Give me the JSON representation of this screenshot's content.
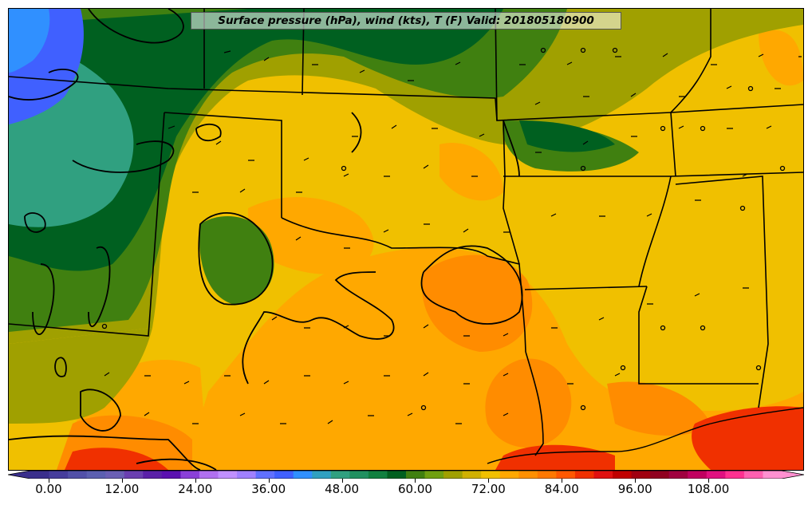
{
  "title": "Surface pressure (hPa), wind (kts), T (F) Valid: 201805180900",
  "colorbar": {
    "min": -3,
    "max": 120,
    "step": 3,
    "ticks": [
      "0.00",
      "12.00",
      "24.00",
      "36.00",
      "48.00",
      "60.00",
      "72.00",
      "84.00",
      "96.00",
      "108.00"
    ],
    "tick_values": [
      0,
      12,
      24,
      36,
      48,
      60,
      72,
      84,
      96,
      108
    ],
    "colors": [
      "#3a2f8c",
      "#463d9c",
      "#5150a8",
      "#5b5fb0",
      "#6a5fb4",
      "#6a3fb0",
      "#5a20a8",
      "#5a10b0",
      "#8a40d8",
      "#b070f0",
      "#c090ff",
      "#a080ff",
      "#6070ff",
      "#4060ff",
      "#3090ff",
      "#30a0c0",
      "#30a080",
      "#209060",
      "#108040",
      "#006020",
      "#408010",
      "#70a010",
      "#a0a000",
      "#d0b000",
      "#f0c000",
      "#ffa800",
      "#ff9000",
      "#ff7800",
      "#ff5800",
      "#f03000",
      "#e01010",
      "#c00000",
      "#a00010",
      "#900020",
      "#a00040",
      "#c00060",
      "#e01080",
      "#ff3090",
      "#ff60b0",
      "#ff90d0"
    ]
  },
  "map_colors": {
    "base": "#f0c000",
    "orange": "#ffa800",
    "dark_orange": "#ff7800",
    "olive": "#a0a000",
    "light_green": "#408010",
    "dark_green": "#006020",
    "teal": "#30a080",
    "blue": "#4060ff",
    "red": "#f03000",
    "lines": "#000000"
  }
}
